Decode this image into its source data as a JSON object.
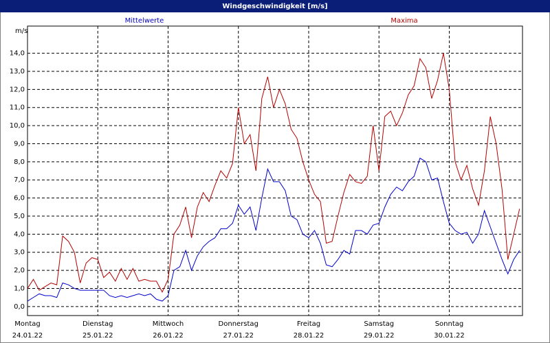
{
  "chart_data": {
    "type": "line",
    "title": "Windgeschwindigkeit [m/s]",
    "ylabel": "m/s",
    "x": [
      0,
      2,
      4,
      6,
      8,
      10,
      12,
      14,
      16,
      18,
      20,
      22,
      24,
      26,
      28,
      30,
      32,
      34,
      36,
      38,
      40,
      42,
      44,
      46,
      48,
      50,
      52,
      54,
      56,
      58,
      60,
      62,
      64,
      66,
      68,
      70,
      72,
      74,
      76,
      78,
      80,
      82,
      84,
      86,
      88,
      90,
      92,
      94,
      96,
      98,
      100,
      102,
      104,
      106,
      108,
      110,
      112,
      114,
      116,
      118,
      120,
      122,
      124,
      126,
      128,
      130,
      132,
      134,
      136,
      138,
      140,
      142,
      144,
      146,
      148,
      150,
      152,
      154,
      156,
      158,
      160,
      162,
      164,
      166,
      168
    ],
    "series": [
      {
        "name": "Mittelwerte",
        "color": "#0000cc",
        "values": [
          0.3,
          0.5,
          0.7,
          0.6,
          0.6,
          0.5,
          1.3,
          1.2,
          1.0,
          0.9,
          0.9,
          0.9,
          0.9,
          0.9,
          0.6,
          0.5,
          0.6,
          0.5,
          0.6,
          0.7,
          0.6,
          0.7,
          0.4,
          0.3,
          0.6,
          2.0,
          2.2,
          3.1,
          2.0,
          2.8,
          3.3,
          3.6,
          3.8,
          4.3,
          4.3,
          4.6,
          5.6,
          5.1,
          5.5,
          4.2,
          6.0,
          7.6,
          6.9,
          6.9,
          6.4,
          5.0,
          4.8,
          4.0,
          3.8,
          4.2,
          3.5,
          2.3,
          2.2,
          2.6,
          3.1,
          2.9,
          4.2,
          4.2,
          4.0,
          4.5,
          4.6,
          5.5,
          6.2,
          6.6,
          6.4,
          6.9,
          7.2,
          8.2,
          8.0,
          7.0,
          7.1,
          5.8,
          4.6,
          4.2,
          4.0,
          4.1,
          3.5,
          4.0,
          5.3,
          4.4,
          3.5,
          2.6,
          1.8,
          2.6,
          3.1
        ]
      },
      {
        "name": "Maxima",
        "color": "#b40000",
        "values": [
          1.0,
          1.5,
          0.9,
          1.1,
          1.3,
          1.2,
          3.9,
          3.6,
          3.0,
          1.3,
          2.4,
          2.7,
          2.6,
          1.6,
          1.9,
          1.4,
          2.1,
          1.5,
          2.1,
          1.4,
          1.5,
          1.4,
          1.4,
          0.8,
          1.5,
          4.0,
          4.5,
          5.5,
          3.8,
          5.5,
          6.3,
          5.8,
          6.7,
          7.5,
          7.1,
          7.9,
          11.0,
          9.0,
          9.5,
          7.5,
          11.5,
          12.7,
          11.0,
          12.0,
          11.2,
          9.8,
          9.3,
          8.0,
          7.0,
          6.2,
          5.8,
          3.5,
          3.6,
          5.0,
          6.3,
          7.3,
          6.9,
          6.8,
          7.2,
          10.0,
          7.5,
          10.5,
          10.8,
          10.0,
          10.7,
          11.7,
          12.2,
          13.7,
          13.2,
          11.5,
          12.5,
          14.0,
          12.0,
          8.0,
          7.0,
          7.8,
          6.5,
          5.6,
          7.5,
          10.5,
          9.0,
          6.5,
          2.6,
          4.0,
          5.4
        ]
      }
    ],
    "xlim": [
      0,
      169
    ],
    "xticks": [
      {
        "value": 0,
        "label": "Montag",
        "date": "24.01.22"
      },
      {
        "value": 24,
        "label": "Dienstag",
        "date": "25.01.22"
      },
      {
        "value": 48,
        "label": "Mittwoch",
        "date": "26.01.22"
      },
      {
        "value": 72,
        "label": "Donnerstag",
        "date": "27.01.22"
      },
      {
        "value": 96,
        "label": "Freitag",
        "date": "28.01.22"
      },
      {
        "value": 120,
        "label": "Samstag",
        "date": "29.01.22"
      },
      {
        "value": 144,
        "label": "Sonntag",
        "date": "30.01.22"
      }
    ],
    "ylim": [
      -0.5,
      15.5
    ],
    "yticks": [
      {
        "value": 0,
        "label": "0,0"
      },
      {
        "value": 1,
        "label": "1,0"
      },
      {
        "value": 2,
        "label": "2,0"
      },
      {
        "value": 3,
        "label": "3,0"
      },
      {
        "value": 4,
        "label": "4,0"
      },
      {
        "value": 5,
        "label": "5,0"
      },
      {
        "value": 6,
        "label": "6,0"
      },
      {
        "value": 7,
        "label": "7,0"
      },
      {
        "value": 8,
        "label": "8,0"
      },
      {
        "value": 9,
        "label": "9,0"
      },
      {
        "value": 10,
        "label": "10,0"
      },
      {
        "value": 11,
        "label": "11,0"
      },
      {
        "value": 12,
        "label": "12,0"
      },
      {
        "value": 13,
        "label": "13,0"
      },
      {
        "value": 14,
        "label": "14,0"
      }
    ],
    "grid": true
  }
}
